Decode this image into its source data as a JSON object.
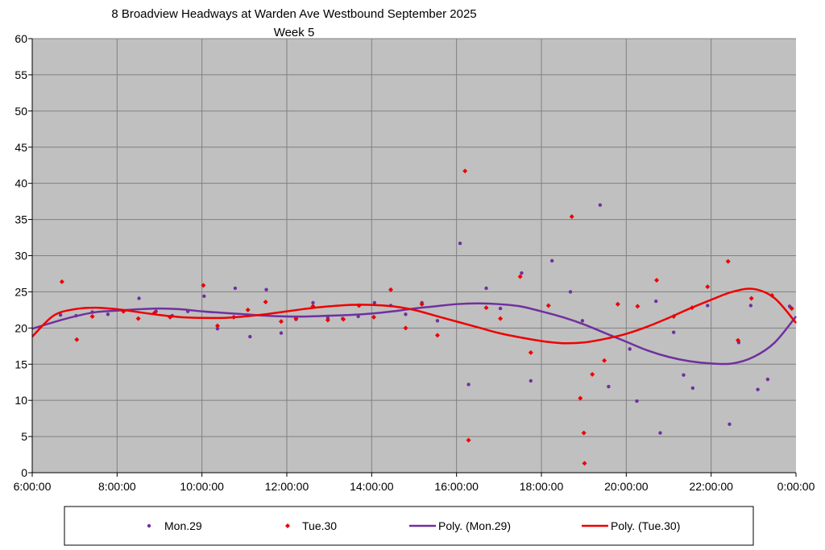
{
  "chart_data": {
    "type": "scatter",
    "title": "8 Broadview Headways at Warden Ave Westbound September 2025",
    "subtitle": "Week 5",
    "xlabel": "",
    "ylabel": "",
    "xlim": [
      "6:00:00",
      "0:00:00"
    ],
    "ylim": [
      0,
      60
    ],
    "x_ticks": [
      "6:00:00",
      "8:00:00",
      "10:00:00",
      "12:00:00",
      "14:00:00",
      "16:00:00",
      "18:00:00",
      "20:00:00",
      "22:00:00",
      "0:00:00"
    ],
    "y_ticks": [
      0,
      5,
      10,
      15,
      20,
      25,
      30,
      35,
      40,
      45,
      50,
      55,
      60
    ],
    "grid": true,
    "legend_position": "bottom",
    "plot_background": "#c0c0c0",
    "series": [
      {
        "name": "Mon.29",
        "marker": "circle",
        "color": "#7030a0",
        "points": [
          [
            "6:40",
            21.8
          ],
          [
            "7:02",
            21.7
          ],
          [
            "7:25",
            22.2
          ],
          [
            "7:47",
            21.9
          ],
          [
            "8:09",
            22.3
          ],
          [
            "8:31",
            24.1
          ],
          [
            "8:55",
            22.3
          ],
          [
            "9:18",
            21.7
          ],
          [
            "9:40",
            22.3
          ],
          [
            "10:03",
            24.4
          ],
          [
            "10:22",
            19.9
          ],
          [
            "10:47",
            25.5
          ],
          [
            "11:08",
            18.8
          ],
          [
            "11:31",
            25.3
          ],
          [
            "11:52",
            19.3
          ],
          [
            "12:13",
            21.2
          ],
          [
            "12:37",
            23.5
          ],
          [
            "12:58",
            21.4
          ],
          [
            "13:19",
            21.3
          ],
          [
            "13:41",
            21.6
          ],
          [
            "14:04",
            23.5
          ],
          [
            "14:27",
            23.1
          ],
          [
            "14:48",
            21.9
          ],
          [
            "15:11",
            23.5
          ],
          [
            "15:33",
            21.0
          ],
          [
            "16:05",
            31.7
          ],
          [
            "16:17",
            12.2
          ],
          [
            "16:42",
            25.5
          ],
          [
            "17:02",
            22.7
          ],
          [
            "17:32",
            27.6
          ],
          [
            "17:45",
            12.7
          ],
          [
            "18:15",
            29.3
          ],
          [
            "18:41",
            25.0
          ],
          [
            "18:58",
            21.0
          ],
          [
            "19:23",
            37.0
          ],
          [
            "19:35",
            11.9
          ],
          [
            "20:05",
            17.1
          ],
          [
            "20:15",
            9.9
          ],
          [
            "20:42",
            23.7
          ],
          [
            "20:48",
            5.5
          ],
          [
            "21:07",
            19.4
          ],
          [
            "21:21",
            13.5
          ],
          [
            "21:34",
            11.7
          ],
          [
            "21:55",
            23.1
          ],
          [
            "22:26",
            6.7
          ],
          [
            "22:39",
            18.0
          ],
          [
            "22:56",
            23.1
          ],
          [
            "23:06",
            11.5
          ],
          [
            "23:20",
            12.9
          ],
          [
            "23:51",
            23.0
          ]
        ]
      },
      {
        "name": "Tue.30",
        "marker": "diamond",
        "color": "#ee0000",
        "points": [
          [
            "6:42",
            26.4
          ],
          [
            "7:03",
            18.4
          ],
          [
            "7:25",
            21.6
          ],
          [
            "8:09",
            22.3
          ],
          [
            "8:30",
            21.3
          ],
          [
            "8:53",
            22.1
          ],
          [
            "9:15",
            21.5
          ],
          [
            "10:02",
            25.9
          ],
          [
            "10:22",
            20.3
          ],
          [
            "10:45",
            21.5
          ],
          [
            "11:05",
            22.5
          ],
          [
            "11:30",
            23.6
          ],
          [
            "11:52",
            20.9
          ],
          [
            "12:13",
            21.3
          ],
          [
            "12:37",
            23.0
          ],
          [
            "12:58",
            21.1
          ],
          [
            "13:20",
            21.2
          ],
          [
            "13:42",
            23.1
          ],
          [
            "14:03",
            21.5
          ],
          [
            "14:27",
            25.3
          ],
          [
            "14:48",
            20.0
          ],
          [
            "15:11",
            23.3
          ],
          [
            "15:33",
            19.0
          ],
          [
            "16:12",
            41.7
          ],
          [
            "16:17",
            4.5
          ],
          [
            "16:42",
            22.8
          ],
          [
            "17:02",
            21.3
          ],
          [
            "17:30",
            27.1
          ],
          [
            "17:45",
            16.6
          ],
          [
            "18:10",
            23.1
          ],
          [
            "18:43",
            35.4
          ],
          [
            "18:55",
            10.3
          ],
          [
            "19:00",
            5.5
          ],
          [
            "19:01",
            1.3
          ],
          [
            "19:12",
            13.6
          ],
          [
            "19:29",
            15.5
          ],
          [
            "19:48",
            23.3
          ],
          [
            "20:16",
            23.0
          ],
          [
            "20:43",
            26.6
          ],
          [
            "21:07",
            21.6
          ],
          [
            "21:33",
            22.8
          ],
          [
            "21:55",
            25.7
          ],
          [
            "22:24",
            29.2
          ],
          [
            "22:38",
            18.3
          ],
          [
            "22:57",
            24.1
          ],
          [
            "23:26",
            24.5
          ],
          [
            "23:54",
            22.7
          ]
        ]
      },
      {
        "name": "Poly. (Mon.29)",
        "type": "line",
        "color": "#7030a0",
        "points": [
          [
            "6:00",
            19.9
          ],
          [
            "6:30",
            20.8
          ],
          [
            "7:00",
            21.6
          ],
          [
            "7:30",
            22.2
          ],
          [
            "8:00",
            22.4
          ],
          [
            "8:30",
            22.6
          ],
          [
            "9:00",
            22.7
          ],
          [
            "9:30",
            22.6
          ],
          [
            "10:00",
            22.3
          ],
          [
            "10:30",
            22.1
          ],
          [
            "11:00",
            21.9
          ],
          [
            "11:30",
            21.7
          ],
          [
            "12:00",
            21.6
          ],
          [
            "12:30",
            21.6
          ],
          [
            "13:00",
            21.7
          ],
          [
            "13:30",
            21.8
          ],
          [
            "14:00",
            22.0
          ],
          [
            "14:30",
            22.3
          ],
          [
            "15:00",
            22.7
          ],
          [
            "15:30",
            23.0
          ],
          [
            "16:00",
            23.3
          ],
          [
            "16:30",
            23.4
          ],
          [
            "17:00",
            23.3
          ],
          [
            "17:30",
            23.0
          ],
          [
            "18:00",
            22.3
          ],
          [
            "18:30",
            21.5
          ],
          [
            "19:00",
            20.5
          ],
          [
            "19:30",
            19.3
          ],
          [
            "20:00",
            18.1
          ],
          [
            "20:30",
            16.9
          ],
          [
            "21:00",
            16.0
          ],
          [
            "21:30",
            15.4
          ],
          [
            "22:00",
            15.1
          ],
          [
            "22:30",
            15.1
          ],
          [
            "23:00",
            16.0
          ],
          [
            "23:30",
            18.0
          ],
          [
            "0:00",
            21.6
          ]
        ]
      },
      {
        "name": "Poly. (Tue.30)",
        "type": "line",
        "color": "#ee0000",
        "points": [
          [
            "6:00",
            18.8
          ],
          [
            "6:30",
            21.7
          ],
          [
            "7:00",
            22.6
          ],
          [
            "7:30",
            22.8
          ],
          [
            "8:00",
            22.6
          ],
          [
            "8:30",
            22.2
          ],
          [
            "9:00",
            21.8
          ],
          [
            "9:30",
            21.5
          ],
          [
            "10:00",
            21.4
          ],
          [
            "10:30",
            21.4
          ],
          [
            "11:00",
            21.6
          ],
          [
            "11:30",
            21.9
          ],
          [
            "12:00",
            22.3
          ],
          [
            "12:30",
            22.7
          ],
          [
            "13:00",
            23.0
          ],
          [
            "13:30",
            23.2
          ],
          [
            "14:00",
            23.2
          ],
          [
            "14:30",
            23.0
          ],
          [
            "15:00",
            22.5
          ],
          [
            "15:30",
            21.7
          ],
          [
            "16:00",
            20.9
          ],
          [
            "16:30",
            20.1
          ],
          [
            "17:00",
            19.3
          ],
          [
            "17:30",
            18.7
          ],
          [
            "18:00",
            18.2
          ],
          [
            "18:30",
            17.9
          ],
          [
            "19:00",
            18.0
          ],
          [
            "19:30",
            18.5
          ],
          [
            "20:00",
            19.2
          ],
          [
            "20:30",
            20.2
          ],
          [
            "21:00",
            21.4
          ],
          [
            "21:30",
            22.7
          ],
          [
            "22:00",
            23.9
          ],
          [
            "22:30",
            25.0
          ],
          [
            "23:00",
            25.4
          ],
          [
            "23:30",
            24.1
          ],
          [
            "0:00",
            20.7
          ]
        ]
      }
    ]
  }
}
